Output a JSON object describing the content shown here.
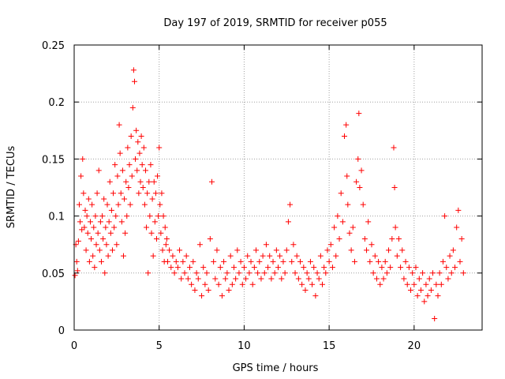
{
  "chart_data": {
    "type": "scatter",
    "title": "Day 197 of 2019, SRMTID for receiver p055",
    "xlabel": "GPS time / hours",
    "ylabel": "SRMTID / TECUs",
    "xlim": [
      0,
      24
    ],
    "ylim": [
      0,
      0.25
    ],
    "x_ticks": [
      0,
      5,
      10,
      15,
      20
    ],
    "x_tick_labels": [
      "0",
      "5",
      "10",
      "15",
      "20"
    ],
    "y_ticks": [
      0,
      0.05,
      0.1,
      0.15,
      0.2,
      0.25
    ],
    "y_tick_labels": [
      "0",
      "0.05",
      "0.1",
      "0.15",
      "0.2",
      "0.25"
    ],
    "grid": true,
    "marker": "+",
    "series": [
      {
        "name": "p055",
        "color": "#ff0000",
        "points": [
          [
            0.05,
            0.048
          ],
          [
            0.1,
            0.075
          ],
          [
            0.15,
            0.06
          ],
          [
            0.2,
            0.052
          ],
          [
            0.25,
            0.078
          ],
          [
            0.3,
            0.11
          ],
          [
            0.35,
            0.095
          ],
          [
            0.4,
            0.135
          ],
          [
            0.45,
            0.088
          ],
          [
            0.5,
            0.15
          ],
          [
            0.55,
            0.12
          ],
          [
            0.6,
            0.09
          ],
          [
            0.65,
            0.105
          ],
          [
            0.7,
            0.07
          ],
          [
            0.75,
            0.1
          ],
          [
            0.8,
            0.085
          ],
          [
            0.85,
            0.115
          ],
          [
            0.9,
            0.06
          ],
          [
            0.95,
            0.095
          ],
          [
            1.0,
            0.08
          ],
          [
            1.05,
            0.11
          ],
          [
            1.1,
            0.065
          ],
          [
            1.15,
            0.09
          ],
          [
            1.2,
            0.055
          ],
          [
            1.25,
            0.1
          ],
          [
            1.3,
            0.075
          ],
          [
            1.35,
            0.12
          ],
          [
            1.4,
            0.085
          ],
          [
            1.45,
            0.14
          ],
          [
            1.5,
            0.07
          ],
          [
            1.55,
            0.095
          ],
          [
            1.6,
            0.06
          ],
          [
            1.65,
            0.1
          ],
          [
            1.7,
            0.08
          ],
          [
            1.75,
            0.115
          ],
          [
            1.8,
            0.05
          ],
          [
            1.85,
            0.09
          ],
          [
            1.9,
            0.075
          ],
          [
            1.95,
            0.11
          ],
          [
            2.0,
            0.065
          ],
          [
            2.05,
            0.095
          ],
          [
            2.1,
            0.13
          ],
          [
            2.15,
            0.085
          ],
          [
            2.2,
            0.105
          ],
          [
            2.25,
            0.07
          ],
          [
            2.3,
            0.12
          ],
          [
            2.35,
            0.09
          ],
          [
            2.4,
            0.145
          ],
          [
            2.45,
            0.1
          ],
          [
            2.5,
            0.075
          ],
          [
            2.55,
            0.135
          ],
          [
            2.6,
            0.11
          ],
          [
            2.65,
            0.18
          ],
          [
            2.7,
            0.155
          ],
          [
            2.75,
            0.12
          ],
          [
            2.8,
            0.095
          ],
          [
            2.85,
            0.14
          ],
          [
            2.9,
            0.065
          ],
          [
            2.95,
            0.115
          ],
          [
            3.0,
            0.085
          ],
          [
            3.05,
            0.13
          ],
          [
            3.1,
            0.1
          ],
          [
            3.15,
            0.16
          ],
          [
            3.2,
            0.125
          ],
          [
            3.25,
            0.145
          ],
          [
            3.3,
            0.11
          ],
          [
            3.35,
            0.17
          ],
          [
            3.4,
            0.135
          ],
          [
            3.45,
            0.195
          ],
          [
            3.5,
            0.228
          ],
          [
            3.55,
            0.218
          ],
          [
            3.6,
            0.15
          ],
          [
            3.65,
            0.175
          ],
          [
            3.7,
            0.14
          ],
          [
            3.75,
            0.165
          ],
          [
            3.8,
            0.12
          ],
          [
            3.85,
            0.155
          ],
          [
            3.9,
            0.13
          ],
          [
            3.95,
            0.17
          ],
          [
            4.0,
            0.145
          ],
          [
            4.05,
            0.125
          ],
          [
            4.1,
            0.16
          ],
          [
            4.15,
            0.11
          ],
          [
            4.2,
            0.14
          ],
          [
            4.25,
            0.09
          ],
          [
            4.3,
            0.12
          ],
          [
            4.35,
            0.05
          ],
          [
            4.4,
            0.13
          ],
          [
            4.45,
            0.1
          ],
          [
            4.5,
            0.145
          ],
          [
            4.55,
            0.085
          ],
          [
            4.6,
            0.115
          ],
          [
            4.65,
            0.065
          ],
          [
            4.7,
            0.13
          ],
          [
            4.75,
            0.095
          ],
          [
            4.8,
            0.12
          ],
          [
            4.85,
            0.08
          ],
          [
            4.9,
            0.135
          ],
          [
            4.95,
            0.1
          ],
          [
            5.0,
            0.16
          ],
          [
            5.05,
            0.11
          ],
          [
            5.1,
            0.085
          ],
          [
            5.15,
            0.12
          ],
          [
            5.2,
            0.07
          ],
          [
            5.25,
            0.1
          ],
          [
            5.3,
            0.06
          ],
          [
            5.35,
            0.09
          ],
          [
            5.4,
            0.075
          ],
          [
            5.45,
            0.08
          ],
          [
            5.5,
            0.06
          ],
          [
            5.6,
            0.07
          ],
          [
            5.7,
            0.055
          ],
          [
            5.8,
            0.065
          ],
          [
            5.9,
            0.05
          ],
          [
            6.0,
            0.06
          ],
          [
            6.1,
            0.055
          ],
          [
            6.2,
            0.07
          ],
          [
            6.3,
            0.045
          ],
          [
            6.4,
            0.06
          ],
          [
            6.5,
            0.05
          ],
          [
            6.6,
            0.065
          ],
          [
            6.7,
            0.045
          ],
          [
            6.8,
            0.055
          ],
          [
            6.9,
            0.04
          ],
          [
            7.0,
            0.06
          ],
          [
            7.1,
            0.035
          ],
          [
            7.2,
            0.05
          ],
          [
            7.3,
            0.045
          ],
          [
            7.4,
            0.075
          ],
          [
            7.5,
            0.03
          ],
          [
            7.6,
            0.055
          ],
          [
            7.7,
            0.04
          ],
          [
            7.8,
            0.05
          ],
          [
            7.9,
            0.035
          ],
          [
            8.0,
            0.08
          ],
          [
            8.1,
            0.13
          ],
          [
            8.2,
            0.06
          ],
          [
            8.3,
            0.045
          ],
          [
            8.4,
            0.07
          ],
          [
            8.5,
            0.04
          ],
          [
            8.6,
            0.055
          ],
          [
            8.7,
            0.03
          ],
          [
            8.8,
            0.06
          ],
          [
            8.9,
            0.045
          ],
          [
            9.0,
            0.05
          ],
          [
            9.1,
            0.035
          ],
          [
            9.2,
            0.065
          ],
          [
            9.3,
            0.04
          ],
          [
            9.4,
            0.055
          ],
          [
            9.5,
            0.045
          ],
          [
            9.6,
            0.07
          ],
          [
            9.7,
            0.05
          ],
          [
            9.8,
            0.06
          ],
          [
            9.9,
            0.04
          ],
          [
            10.0,
            0.055
          ],
          [
            10.1,
            0.045
          ],
          [
            10.2,
            0.065
          ],
          [
            10.3,
            0.05
          ],
          [
            10.4,
            0.06
          ],
          [
            10.5,
            0.04
          ],
          [
            10.6,
            0.055
          ],
          [
            10.7,
            0.07
          ],
          [
            10.8,
            0.05
          ],
          [
            10.9,
            0.06
          ],
          [
            11.0,
            0.045
          ],
          [
            11.1,
            0.065
          ],
          [
            11.2,
            0.05
          ],
          [
            11.3,
            0.075
          ],
          [
            11.4,
            0.055
          ],
          [
            11.5,
            0.065
          ],
          [
            11.6,
            0.045
          ],
          [
            11.7,
            0.06
          ],
          [
            11.8,
            0.05
          ],
          [
            11.9,
            0.07
          ],
          [
            12.0,
            0.055
          ],
          [
            12.1,
            0.065
          ],
          [
            12.2,
            0.045
          ],
          [
            12.3,
            0.06
          ],
          [
            12.4,
            0.05
          ],
          [
            12.5,
            0.07
          ],
          [
            12.6,
            0.095
          ],
          [
            12.7,
            0.11
          ],
          [
            12.8,
            0.06
          ],
          [
            12.9,
            0.075
          ],
          [
            13.0,
            0.05
          ],
          [
            13.1,
            0.065
          ],
          [
            13.2,
            0.045
          ],
          [
            13.3,
            0.06
          ],
          [
            13.4,
            0.04
          ],
          [
            13.5,
            0.055
          ],
          [
            13.6,
            0.035
          ],
          [
            13.7,
            0.05
          ],
          [
            13.8,
            0.045
          ],
          [
            13.9,
            0.06
          ],
          [
            14.0,
            0.04
          ],
          [
            14.1,
            0.055
          ],
          [
            14.2,
            0.03
          ],
          [
            14.3,
            0.05
          ],
          [
            14.4,
            0.045
          ],
          [
            14.5,
            0.065
          ],
          [
            14.6,
            0.04
          ],
          [
            14.7,
            0.055
          ],
          [
            14.8,
            0.05
          ],
          [
            14.9,
            0.07
          ],
          [
            15.0,
            0.06
          ],
          [
            15.1,
            0.075
          ],
          [
            15.2,
            0.055
          ],
          [
            15.3,
            0.09
          ],
          [
            15.4,
            0.065
          ],
          [
            15.5,
            0.1
          ],
          [
            15.6,
            0.08
          ],
          [
            15.7,
            0.12
          ],
          [
            15.8,
            0.095
          ],
          [
            15.9,
            0.17
          ],
          [
            16.0,
            0.18
          ],
          [
            16.05,
            0.135
          ],
          [
            16.1,
            0.11
          ],
          [
            16.2,
            0.085
          ],
          [
            16.3,
            0.07
          ],
          [
            16.4,
            0.09
          ],
          [
            16.5,
            0.06
          ],
          [
            16.6,
            0.13
          ],
          [
            16.7,
            0.15
          ],
          [
            16.75,
            0.19
          ],
          [
            16.8,
            0.125
          ],
          [
            16.9,
            0.14
          ],
          [
            17.0,
            0.11
          ],
          [
            17.1,
            0.08
          ],
          [
            17.2,
            0.07
          ],
          [
            17.3,
            0.095
          ],
          [
            17.4,
            0.06
          ],
          [
            17.5,
            0.075
          ],
          [
            17.6,
            0.05
          ],
          [
            17.7,
            0.065
          ],
          [
            17.8,
            0.045
          ],
          [
            17.9,
            0.06
          ],
          [
            18.0,
            0.04
          ],
          [
            18.1,
            0.055
          ],
          [
            18.2,
            0.045
          ],
          [
            18.3,
            0.06
          ],
          [
            18.4,
            0.05
          ],
          [
            18.5,
            0.07
          ],
          [
            18.6,
            0.055
          ],
          [
            18.7,
            0.08
          ],
          [
            18.8,
            0.16
          ],
          [
            18.85,
            0.125
          ],
          [
            18.9,
            0.09
          ],
          [
            19.0,
            0.065
          ],
          [
            19.1,
            0.08
          ],
          [
            19.2,
            0.055
          ],
          [
            19.3,
            0.07
          ],
          [
            19.4,
            0.045
          ],
          [
            19.5,
            0.06
          ],
          [
            19.6,
            0.04
          ],
          [
            19.7,
            0.055
          ],
          [
            19.8,
            0.035
          ],
          [
            19.9,
            0.05
          ],
          [
            20.0,
            0.04
          ],
          [
            20.1,
            0.055
          ],
          [
            20.2,
            0.03
          ],
          [
            20.3,
            0.045
          ],
          [
            20.4,
            0.035
          ],
          [
            20.5,
            0.05
          ],
          [
            20.6,
            0.025
          ],
          [
            20.7,
            0.04
          ],
          [
            20.8,
            0.03
          ],
          [
            20.9,
            0.045
          ],
          [
            21.0,
            0.035
          ],
          [
            21.1,
            0.05
          ],
          [
            21.2,
            0.01
          ],
          [
            21.3,
            0.04
          ],
          [
            21.4,
            0.03
          ],
          [
            21.5,
            0.05
          ],
          [
            21.6,
            0.04
          ],
          [
            21.7,
            0.06
          ],
          [
            21.8,
            0.1
          ],
          [
            21.9,
            0.055
          ],
          [
            22.0,
            0.045
          ],
          [
            22.1,
            0.065
          ],
          [
            22.2,
            0.05
          ],
          [
            22.3,
            0.07
          ],
          [
            22.4,
            0.055
          ],
          [
            22.5,
            0.09
          ],
          [
            22.6,
            0.105
          ],
          [
            22.7,
            0.06
          ],
          [
            22.8,
            0.08
          ],
          [
            22.9,
            0.05
          ]
        ]
      }
    ]
  }
}
